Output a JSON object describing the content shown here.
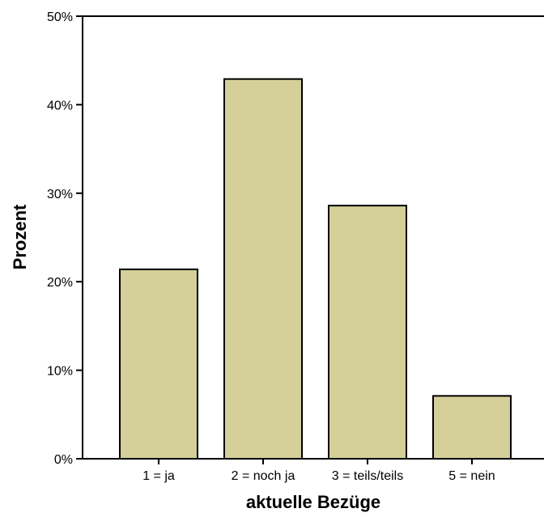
{
  "chart_data": {
    "type": "bar",
    "categories": [
      "1 = ja",
      "2 = noch ja",
      "3 = teils/teils",
      "5 = nein"
    ],
    "values": [
      21.4,
      42.9,
      28.6,
      7.1
    ],
    "value_unit": "%",
    "xlabel": "aktuelle Bezüge",
    "ylabel": "Prozent",
    "ylim": [
      0,
      50
    ],
    "yticks": [
      0,
      10,
      20,
      30,
      40,
      50
    ],
    "ytick_labels": [
      "0%",
      "10%",
      "20%",
      "30%",
      "40%",
      "50%"
    ],
    "grid": false,
    "legend": "none",
    "colors": {
      "bar_fill": "#d5cf99",
      "bar_stroke": "#000000",
      "axis": "#000000",
      "background": "#ffffff"
    }
  }
}
